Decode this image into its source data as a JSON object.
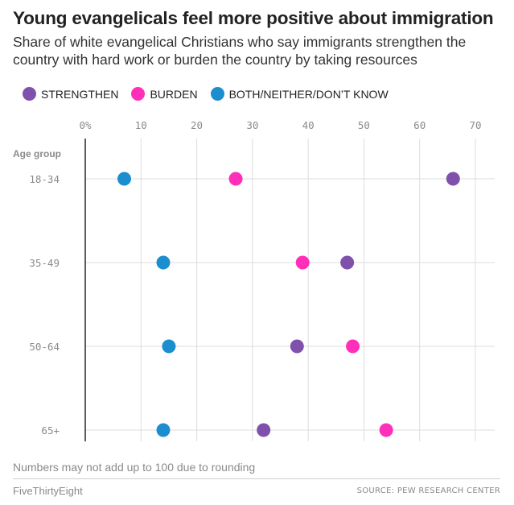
{
  "header": {
    "title": "Young evangelicals feel more positive about immigration",
    "subtitle": "Share of white evangelical Christians who say immigrants strengthen the country with hard work or burden the country by taking resources"
  },
  "legend": [
    {
      "label": "STRENGTHEN",
      "color": "#7f51ad"
    },
    {
      "label": "BURDEN",
      "color": "#ff2fba"
    },
    {
      "label": "BOTH/NEITHER/DON’T KNOW",
      "color": "#1b8ed0"
    }
  ],
  "chart_data": {
    "type": "scatter",
    "title": "Young evangelicals feel more positive about immigration",
    "subtitle": "Share of white evangelical Christians who say immigrants strengthen the country with hard work or burden the country by taking resources",
    "ylabel": "Age group",
    "xlabel": "",
    "categories": [
      "18-34",
      "35-49",
      "50-64",
      "65+"
    ],
    "x_ticks": [
      "0%",
      "10",
      "20",
      "30",
      "40",
      "50",
      "60",
      "70"
    ],
    "xlim": [
      0,
      70
    ],
    "grid": true,
    "legend_position": "top",
    "series": [
      {
        "name": "STRENGTHEN",
        "color": "#7f51ad",
        "values": [
          66,
          47,
          38,
          32
        ]
      },
      {
        "name": "BURDEN",
        "color": "#ff2fba",
        "values": [
          27,
          39,
          48,
          54
        ]
      },
      {
        "name": "BOTH/NEITHER/DON’T KNOW",
        "color": "#1b8ed0",
        "values": [
          7,
          14,
          15,
          14
        ]
      }
    ]
  },
  "footnote": "Numbers may not add up to 100 due to rounding",
  "footer": {
    "brand": "FiveThirtyEight",
    "source": "SOURCE: PEW RESEARCH CENTER"
  }
}
